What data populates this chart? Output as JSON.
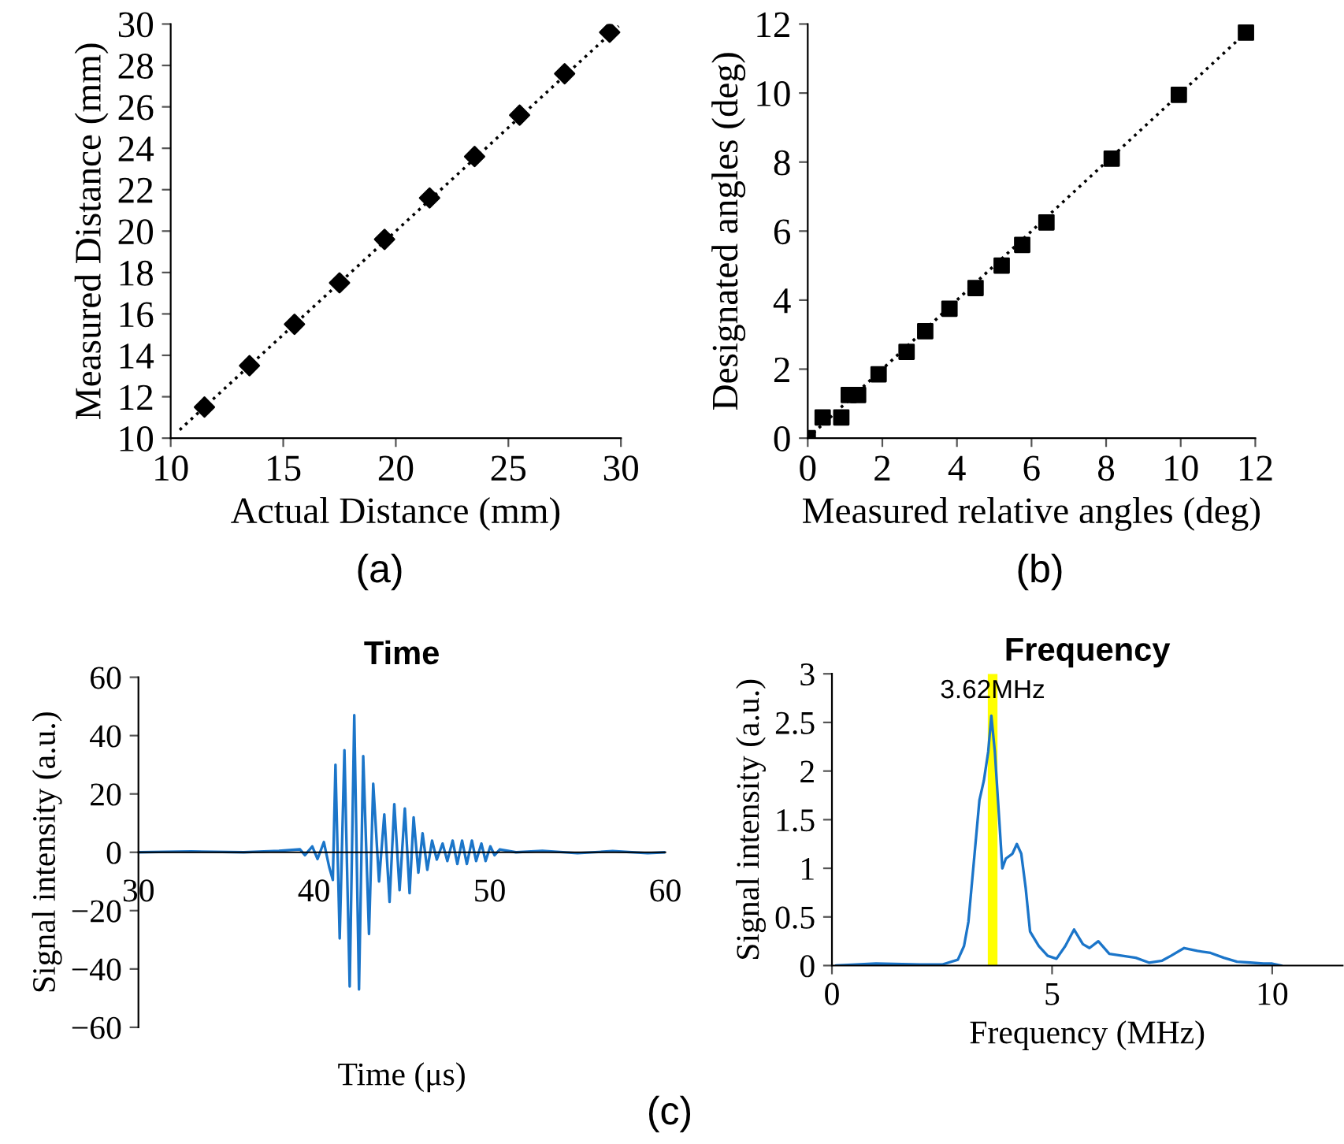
{
  "chart_data": [
    {
      "type": "scatter",
      "xlabel": "Actual Distance (mm)",
      "ylabel": "Measured Distance (mm)",
      "xlim": [
        10,
        30
      ],
      "ylim": [
        10,
        30
      ],
      "xticks": [
        10,
        15,
        20,
        25,
        30
      ],
      "yticks": [
        10,
        12,
        14,
        16,
        18,
        20,
        22,
        24,
        26,
        28,
        30
      ],
      "annotations": [
        "(a)"
      ],
      "series": [
        {
          "marker": "diamond",
          "color": "#000000",
          "x": [
            11.5,
            13.5,
            15.5,
            17.5,
            19.5,
            21.5,
            23.5,
            25.5,
            27.5,
            29.5
          ],
          "values": [
            11.5,
            13.5,
            15.5,
            17.5,
            19.6,
            21.6,
            23.6,
            25.6,
            27.6,
            29.6
          ]
        },
        {
          "type": "line",
          "line_style": "dotted",
          "marker": "none",
          "color": "#000000",
          "x": [
            10.4,
            29.9
          ],
          "values": [
            10.4,
            29.9
          ]
        }
      ]
    },
    {
      "type": "scatter",
      "xlabel": "Measured relative angles (deg)",
      "ylabel": "Designated angles (deg)",
      "xlim": [
        0,
        12
      ],
      "ylim": [
        0,
        12
      ],
      "xticks": [
        0,
        2,
        4,
        6,
        8,
        10,
        12
      ],
      "yticks": [
        0,
        2,
        4,
        6,
        8,
        10,
        12
      ],
      "annotations": [
        "(b)"
      ],
      "series": [
        {
          "marker": "square",
          "color": "#000000",
          "x": [
            0,
            0.4,
            0.9,
            1.1,
            1.35,
            1.9,
            2.65,
            3.15,
            3.8,
            4.5,
            5.2,
            5.75,
            6.4,
            8.15,
            9.95,
            11.75
          ],
          "values": [
            0,
            0.6,
            0.6,
            1.25,
            1.25,
            1.85,
            2.5,
            3.1,
            3.75,
            4.35,
            5.0,
            5.6,
            6.25,
            8.1,
            9.95,
            11.75
          ]
        },
        {
          "type": "line",
          "line_style": "dotted",
          "marker": "none",
          "color": "#000000",
          "x": [
            0,
            11.8
          ],
          "values": [
            0,
            11.8
          ]
        }
      ]
    },
    {
      "type": "line",
      "title": "Time",
      "xlabel": "Time (μs)",
      "ylabel": "Signal intensity (a.u.)",
      "xlim": [
        30,
        60
      ],
      "ylim": [
        -60,
        60
      ],
      "xticks": [
        30,
        40,
        50,
        60
      ],
      "yticks": [
        {
          "value": -60,
          "label": "−60"
        },
        {
          "value": -40,
          "label": "−40"
        },
        {
          "value": -20,
          "label": "−20"
        },
        0,
        20,
        40,
        60
      ],
      "annotations": [
        "(c)"
      ],
      "series": [
        {
          "color": "#1b75c9",
          "x": [
            30,
            33,
            36,
            38,
            39.2,
            39.48,
            39.9,
            40.2,
            40.56,
            40.86,
            41.07,
            41.22,
            41.46,
            41.73,
            42.03,
            42.29,
            42.56,
            42.8,
            43.13,
            43.37,
            43.7,
            44.0,
            44.3,
            44.57,
            44.87,
            45.17,
            45.44,
            45.67,
            45.94,
            46.18,
            46.45,
            46.72,
            46.99,
            47.32,
            47.59,
            47.89,
            48.16,
            48.43,
            48.7,
            48.99,
            49.23,
            49.53,
            49.77,
            50.04,
            50.28,
            50.58,
            51.5,
            53,
            55,
            57,
            59,
            60
          ],
          "values": [
            0,
            0.3,
            0,
            0.5,
            1,
            -1,
            2,
            -2.3,
            3.5,
            -5,
            -9.5,
            30,
            -29.5,
            35,
            -46,
            47,
            -47,
            33,
            -28,
            23.5,
            -10,
            13,
            -17,
            16.5,
            -13,
            15,
            -14,
            12,
            -7,
            6.5,
            -6,
            4,
            -2.5,
            3,
            -3,
            4,
            -4,
            4,
            -4,
            4,
            -3,
            3,
            -3,
            2,
            -1,
            1,
            0,
            0.5,
            -0.3,
            0.4,
            -0.3,
            0
          ]
        }
      ]
    },
    {
      "type": "line",
      "title": "Frequency",
      "xlabel": "Frequency (MHz)",
      "ylabel": "Signal intensity (a.u.)",
      "xlim": [
        0,
        11.6
      ],
      "ylim": [
        0,
        3
      ],
      "xticks": [
        0,
        5,
        10
      ],
      "yticks": [
        0,
        0.5,
        1,
        1.5,
        2,
        2.5,
        3
      ],
      "bands": [
        {
          "axis": "x",
          "from": 3.54,
          "to": 3.76,
          "label": "3.62MHz",
          "color": "#ffff00"
        }
      ],
      "series": [
        {
          "color": "#1b75c9",
          "x": [
            0.1,
            1,
            2,
            2.5,
            2.86,
            3.0,
            3.1,
            3.25,
            3.35,
            3.45,
            3.55,
            3.62,
            3.7,
            3.8,
            3.87,
            3.95,
            4.1,
            4.2,
            4.3,
            4.4,
            4.5,
            4.7,
            4.9,
            5.1,
            5.3,
            5.5,
            5.7,
            5.85,
            6.05,
            6.3,
            6.6,
            6.9,
            7.2,
            7.5,
            7.7,
            8.0,
            8.3,
            8.6,
            8.9,
            9.2,
            9.5,
            9.8,
            10.0,
            10.2
          ],
          "values": [
            0,
            0.02,
            0.01,
            0.01,
            0.06,
            0.2,
            0.45,
            1.2,
            1.7,
            1.9,
            2.2,
            2.57,
            2.2,
            1.5,
            1.0,
            1.1,
            1.15,
            1.25,
            1.15,
            0.8,
            0.35,
            0.2,
            0.1,
            0.07,
            0.2,
            0.37,
            0.22,
            0.18,
            0.25,
            0.12,
            0.1,
            0.08,
            0.03,
            0.05,
            0.1,
            0.18,
            0.15,
            0.13,
            0.08,
            0.04,
            0.03,
            0.02,
            0.02,
            0
          ]
        }
      ]
    }
  ]
}
